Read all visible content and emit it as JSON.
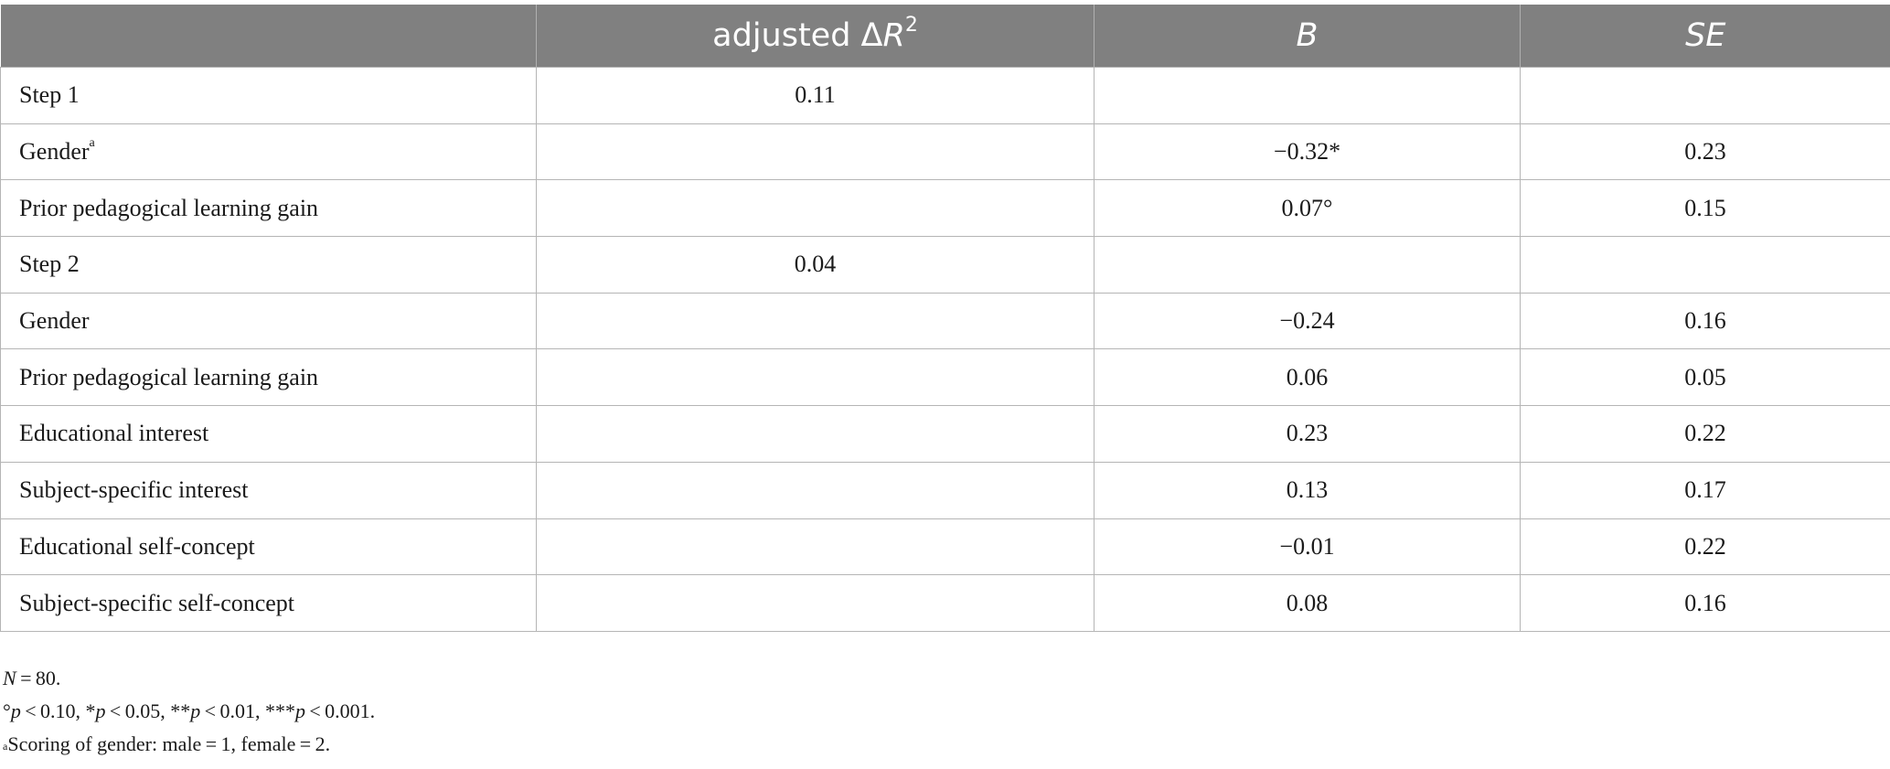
{
  "header": {
    "col0": "",
    "col1_prefix": "adjusted Δ",
    "col1_var": "R",
    "col1_sup": "2",
    "col2": "B",
    "col3": "SE"
  },
  "rows": [
    {
      "label": "Step 1",
      "label_sup": "",
      "r2": "0.11",
      "b": "",
      "se": ""
    },
    {
      "label": "Gender",
      "label_sup": "a",
      "r2": "",
      "b": "−0.32*",
      "se": "0.23"
    },
    {
      "label": "Prior pedagogical learning gain",
      "label_sup": "",
      "r2": "",
      "b": "0.07°",
      "se": "0.15"
    },
    {
      "label": "Step 2",
      "label_sup": "",
      "r2": "0.04",
      "b": "",
      "se": ""
    },
    {
      "label": "Gender",
      "label_sup": "",
      "r2": "",
      "b": "−0.24",
      "se": "0.16"
    },
    {
      "label": "Prior pedagogical learning gain",
      "label_sup": "",
      "r2": "",
      "b": "0.06",
      "se": "0.05"
    },
    {
      "label": "Educational interest",
      "label_sup": "",
      "r2": "",
      "b": "0.23",
      "se": "0.22"
    },
    {
      "label": "Subject-specific interest",
      "label_sup": "",
      "r2": "",
      "b": "0.13",
      "se": "0.17"
    },
    {
      "label": "Educational self-concept",
      "label_sup": "",
      "r2": "",
      "b": "−0.01",
      "se": "0.22"
    },
    {
      "label": "Subject-specific self-concept",
      "label_sup": "",
      "r2": "",
      "b": "0.08",
      "se": "0.16"
    }
  ],
  "notes": {
    "n_var": "N",
    "n_value": " = 80.",
    "sig": [
      {
        "sym": "°",
        "p": "p",
        "txt": " < 0.10, "
      },
      {
        "sym": "*",
        "p": "p",
        "txt": " < 0.05, "
      },
      {
        "sym": "**",
        "p": "p",
        "txt": " < 0.01, "
      },
      {
        "sym": "***",
        "p": "p",
        "txt": " < 0.001."
      }
    ],
    "scoring_sup": "a",
    "scoring": "Scoring of gender: male = 1, female = 2."
  }
}
